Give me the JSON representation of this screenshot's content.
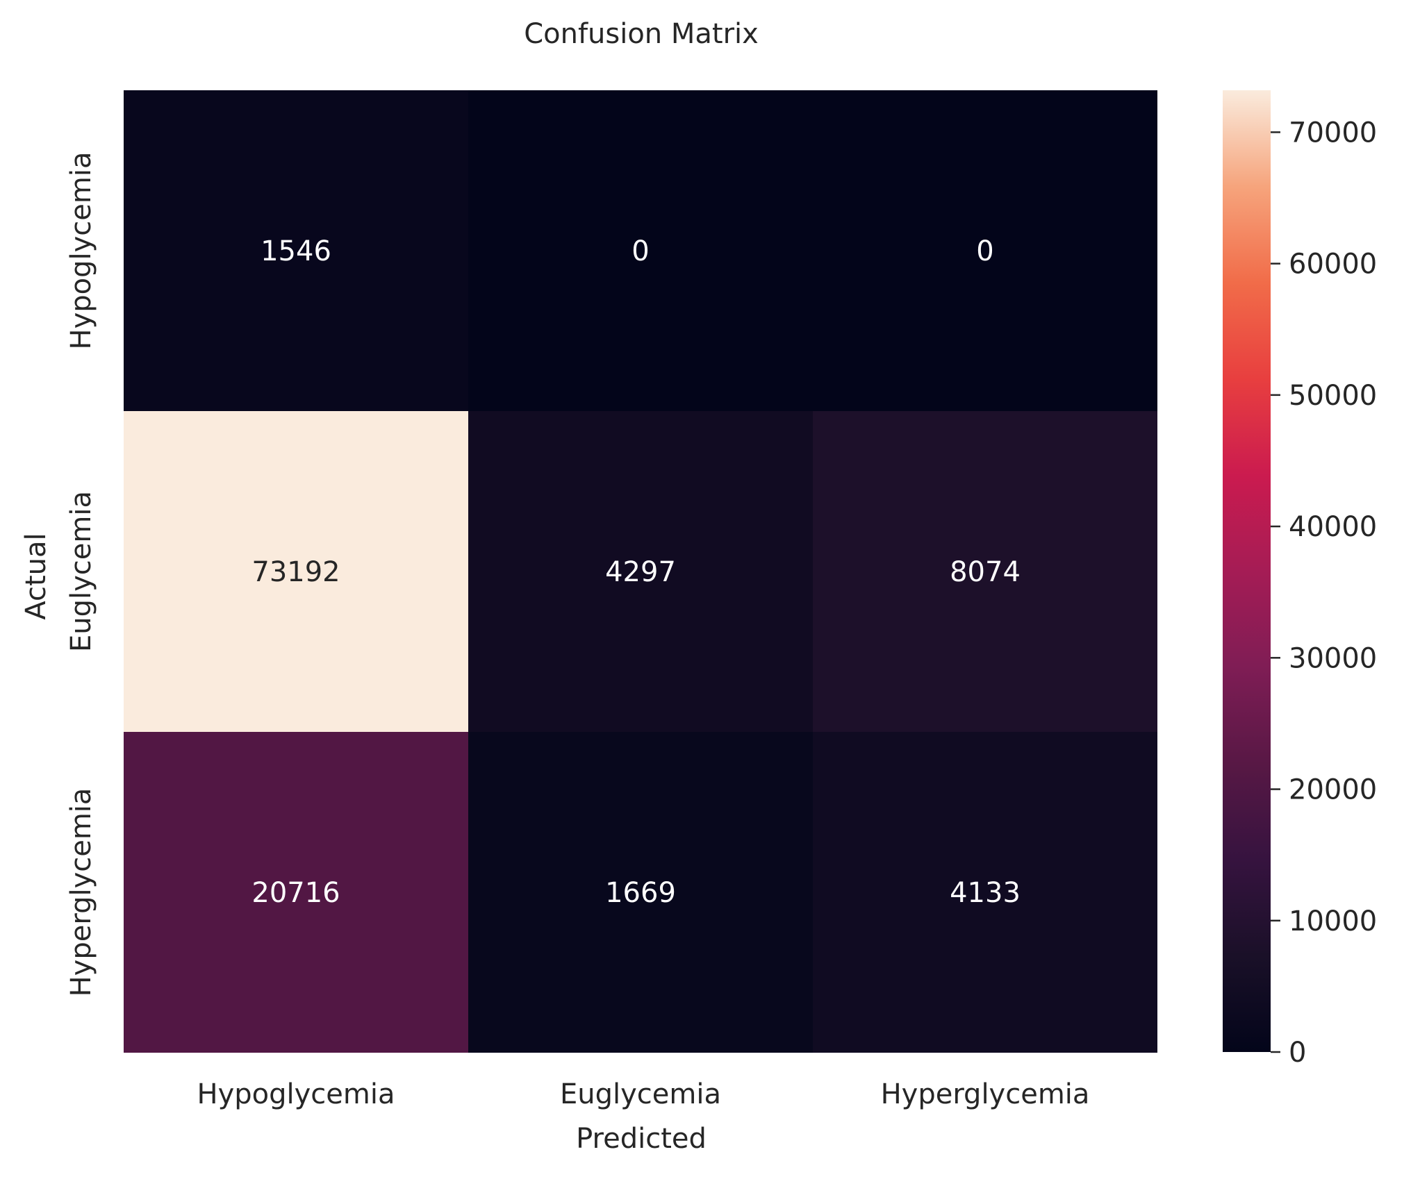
{
  "chart_data": {
    "type": "heatmap",
    "title": "Confusion Matrix",
    "xlabel": "Predicted",
    "ylabel": "Actual",
    "x_categories": [
      "Hypoglycemia",
      "Euglycemia",
      "Hyperglycemia"
    ],
    "y_categories": [
      "Hypoglycemia",
      "Euglycemia",
      "Hyperglycemia"
    ],
    "values": [
      [
        1546,
        0,
        0
      ],
      [
        73192,
        4297,
        8074
      ],
      [
        20716,
        1669,
        4133
      ]
    ],
    "colorbar": {
      "colormap": "rocket",
      "min": 0,
      "max": 73192,
      "ticks": [
        0,
        10000,
        20000,
        30000,
        40000,
        50000,
        60000,
        70000
      ]
    },
    "grid": false,
    "legend": "colorbar-right"
  }
}
